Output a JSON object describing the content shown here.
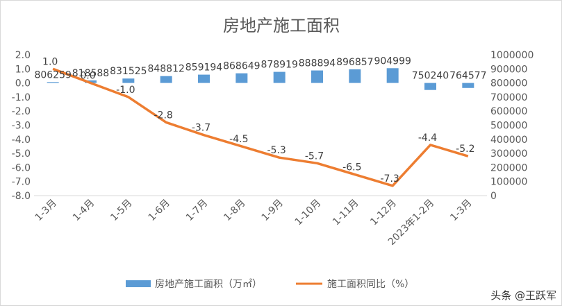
{
  "chart_data": {
    "type": "bar",
    "title": "房地产施工面积",
    "categories": [
      "1-3月",
      "1-4月",
      "1-5月",
      "1-6月",
      "1-7月",
      "1-8月",
      "1-9月",
      "1-10月",
      "1-11月",
      "1-12月",
      "2023年1-2月",
      "1-3月"
    ],
    "series": [
      {
        "name": "房地产施工面积（万㎡）",
        "type": "bar",
        "axis": "right",
        "color": "#5b9bd5",
        "values": [
          806259,
          818588,
          831525,
          848812,
          859194,
          868649,
          878919,
          888894,
          896857,
          904999,
          750240,
          764577
        ],
        "labels": [
          "806259",
          "818588",
          "831525",
          "848812",
          "859194",
          "868649",
          "878919",
          "888894",
          "896857",
          "904999",
          "750240",
          "764577"
        ]
      },
      {
        "name": "施工面积同比（%）",
        "type": "line",
        "axis": "left",
        "color": "#ed7d31",
        "values": [
          1.0,
          0.0,
          -1.0,
          -2.8,
          -3.7,
          -4.5,
          -5.3,
          -5.7,
          -6.5,
          -7.3,
          -4.4,
          -5.2
        ],
        "labels": [
          "1.0",
          "0.0",
          "-1.0",
          "-2.8",
          "-3.7",
          "-4.5",
          "-5.3",
          "-5.7",
          "-6.5",
          "-7.3",
          "-4.4",
          "-5.2"
        ]
      }
    ],
    "left_axis": {
      "min": -8,
      "max": 2,
      "ticks": [
        "2.0",
        "1.0",
        "0.0",
        "-1.0",
        "-2.0",
        "-3.0",
        "-4.0",
        "-5.0",
        "-6.0",
        "-7.0",
        "-8.0"
      ]
    },
    "right_axis": {
      "min": 0,
      "max": 1000000,
      "ticks": [
        "1000000",
        "900000",
        "800000",
        "700000",
        "600000",
        "500000",
        "400000",
        "300000",
        "200000",
        "100000",
        "0"
      ]
    },
    "grid": false,
    "legend_position": "bottom"
  },
  "watermark": "头条 @王跃军"
}
